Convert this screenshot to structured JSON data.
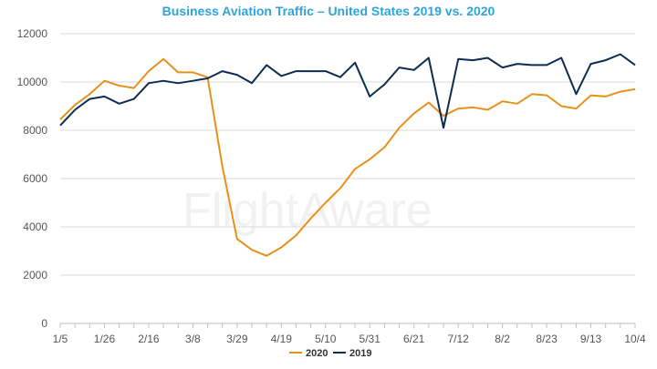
{
  "chart_data": {
    "type": "line",
    "title": "Business Aviation Traffic – United States 2019 vs. 2020",
    "xlabel": "",
    "ylabel": "",
    "ylim": [
      0,
      12000
    ],
    "yticks": [
      0,
      2000,
      4000,
      6000,
      8000,
      10000,
      12000
    ],
    "x_tick_labels": [
      "1/5",
      "1/26",
      "2/16",
      "3/8",
      "3/29",
      "4/19",
      "5/10",
      "5/31",
      "6/21",
      "7/12",
      "8/2",
      "8/23",
      "9/13",
      "10/4"
    ],
    "grid": "horizontal",
    "legend": "bottom",
    "watermark": "FlightAware",
    "series": [
      {
        "name": "2020",
        "color": "#e8901a",
        "values": [
          8450,
          9050,
          9500,
          10050,
          9850,
          9750,
          10450,
          10950,
          10400,
          10400,
          10200,
          6500,
          3500,
          3050,
          2800,
          3150,
          3650,
          4350,
          5000,
          5600,
          6400,
          6800,
          7300,
          8100,
          8700,
          9150,
          8600,
          8900,
          8950,
          8850,
          9200,
          9100,
          9500,
          9450,
          9000,
          8900,
          9450,
          9400,
          9600,
          9700
        ]
      },
      {
        "name": "2019",
        "color": "#0c2c52",
        "values": [
          8200,
          8850,
          9300,
          9400,
          9100,
          9300,
          9950,
          10050,
          9950,
          10050,
          10150,
          10450,
          10300,
          9950,
          10700,
          10250,
          10450,
          10450,
          10450,
          10200,
          10800,
          9400,
          9900,
          10600,
          10500,
          11000,
          8100,
          10950,
          10900,
          11000,
          10600,
          10750,
          10700,
          10700,
          11000,
          9500,
          10750,
          10900,
          11150,
          10700
        ]
      }
    ]
  }
}
